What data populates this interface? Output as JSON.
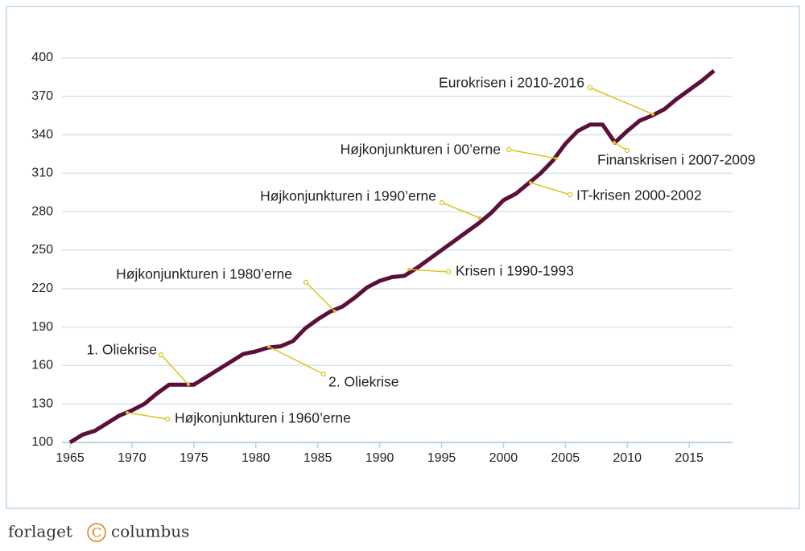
{
  "chart_data": {
    "type": "line",
    "x": [
      1965,
      1966,
      1967,
      1968,
      1969,
      1970,
      1971,
      1972,
      1973,
      1974,
      1975,
      1976,
      1977,
      1978,
      1979,
      1980,
      1981,
      1982,
      1983,
      1984,
      1985,
      1986,
      1987,
      1988,
      1989,
      1990,
      1991,
      1992,
      1993,
      1994,
      1995,
      1996,
      1997,
      1998,
      1999,
      2000,
      2001,
      2002,
      2003,
      2004,
      2005,
      2006,
      2007,
      2008,
      2009,
      2010,
      2011,
      2012,
      2013,
      2014,
      2015,
      2016,
      2017
    ],
    "values": [
      100,
      106,
      109,
      115,
      121,
      125,
      130,
      138,
      145,
      145,
      145,
      151,
      157,
      163,
      169,
      171,
      174,
      175,
      179,
      189,
      196,
      202,
      206,
      213,
      221,
      226,
      229,
      230,
      236,
      243,
      250,
      257,
      264,
      271,
      279,
      289,
      294,
      302,
      310,
      320,
      333,
      343,
      348,
      348,
      334,
      343,
      351,
      355,
      360,
      368,
      375,
      382,
      390
    ],
    "color": "#5b0f3a",
    "xlim": [
      1965,
      2018.5
    ],
    "xticks": [
      1965,
      1970,
      1975,
      1980,
      1985,
      1990,
      1995,
      2000,
      2005,
      2010,
      2015
    ],
    "ylim": [
      100,
      400
    ],
    "yticks": [
      100,
      130,
      160,
      190,
      220,
      250,
      280,
      310,
      340,
      370,
      400
    ],
    "grid": true,
    "annotations": [
      "1. Oliekrise",
      "Højkonjunkturen i 1960’erne",
      "2. Oliekrise",
      "Højkonjunkturen i 1980’erne",
      "Krisen i 1990-1993",
      "Højkonjunkturen i 1990’erne",
      "IT-krisen 2000-2002",
      "Højkonjunkturen i 00’erne",
      "Finanskrisen i 2007-2009",
      "Eurokrisen i 2010-2016"
    ]
  },
  "footer": {
    "left": "forlaget",
    "symbol": "C",
    "right": "columbus"
  }
}
